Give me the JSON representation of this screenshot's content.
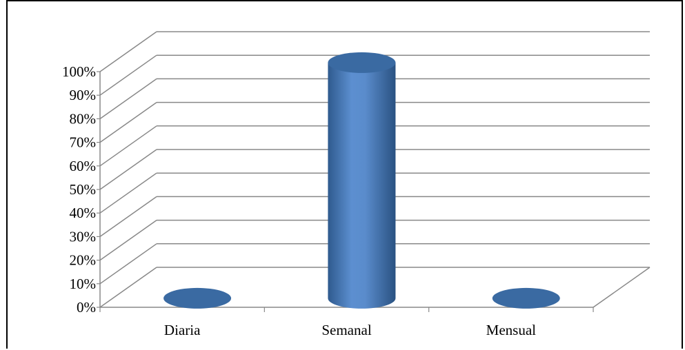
{
  "chart_data": {
    "type": "bar",
    "style": "3d-cylinder",
    "categories": [
      "Diaria",
      "Semanal",
      "Mensual"
    ],
    "values": [
      0,
      100,
      0
    ],
    "ylim": [
      0,
      100
    ],
    "yticks": [
      "0%",
      "10%",
      "20%",
      "30%",
      "40%",
      "50%",
      "60%",
      "70%",
      "80%",
      "90%",
      "100%"
    ],
    "grid": true,
    "legend": "none",
    "colors": {
      "bar": "#4f81bd",
      "bar_dark": "#2a5282",
      "bar_top": "#3a6aa2",
      "grid": "#888888",
      "axis": "#888888"
    }
  }
}
